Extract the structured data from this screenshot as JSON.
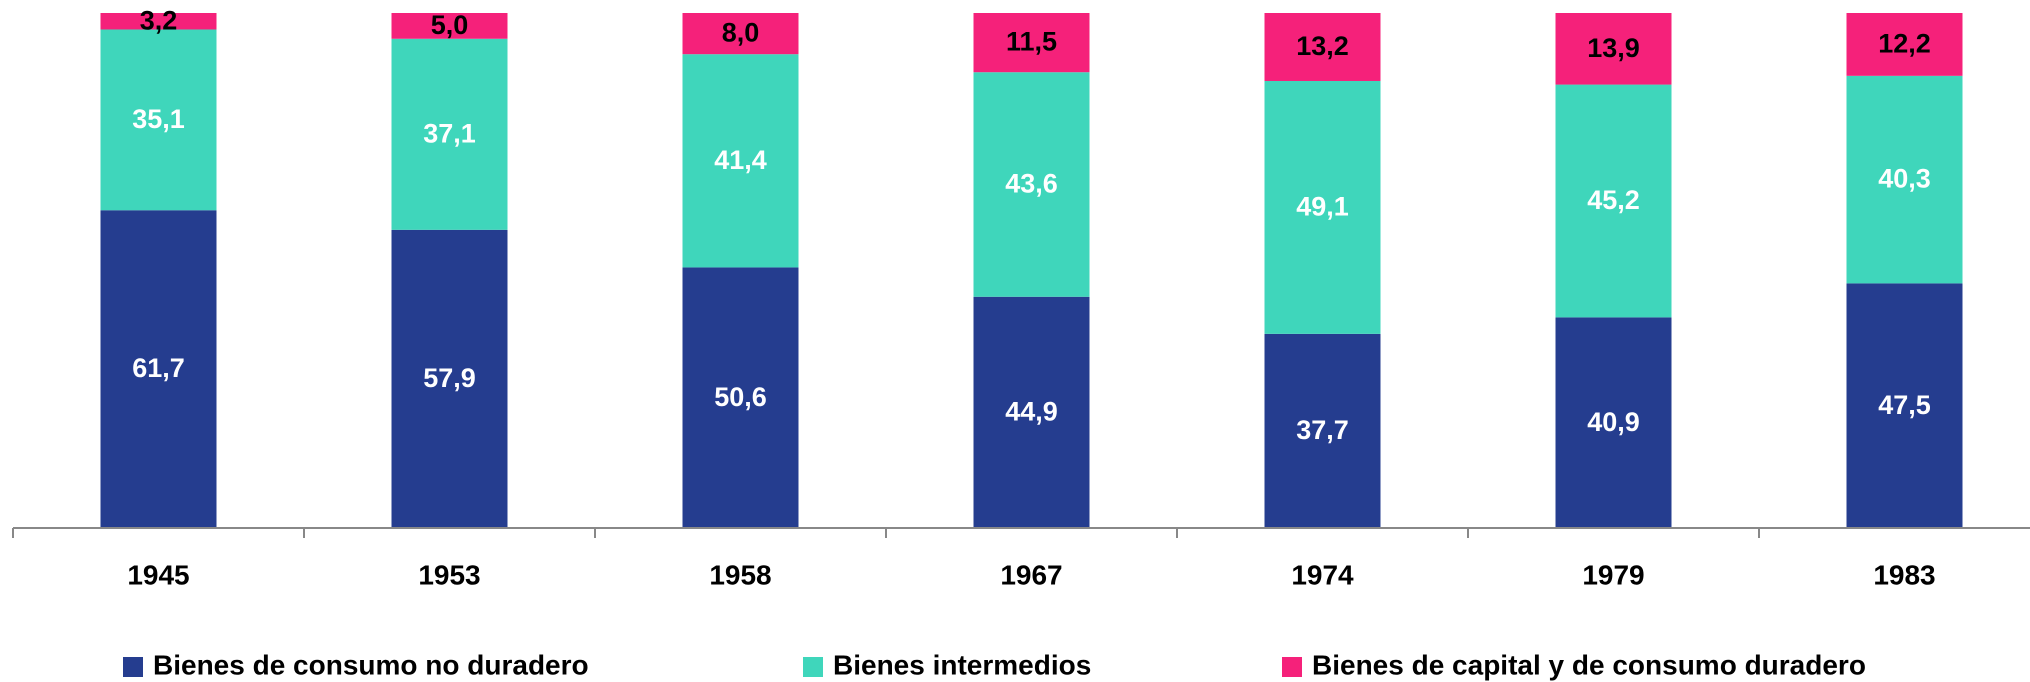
{
  "chart_data": {
    "type": "stacked_bar",
    "categories": [
      "1945",
      "1953",
      "1958",
      "1967",
      "1974",
      "1979",
      "1983"
    ],
    "series": [
      {
        "name": "Bienes de consumo no duradero",
        "color": "#253d8f",
        "label_color": "#ffffff",
        "values": [
          61.7,
          57.9,
          50.6,
          44.9,
          37.7,
          40.9,
          47.5
        ],
        "value_labels": [
          "61,7",
          "57,9",
          "50,6",
          "44,9",
          "37,7",
          "40,9",
          "47,5"
        ]
      },
      {
        "name": "Bienes intermedios",
        "color": "#3fd6bb",
        "label_color": "#ffffff",
        "values": [
          35.1,
          37.1,
          41.4,
          43.6,
          49.1,
          45.2,
          40.3
        ],
        "value_labels": [
          "35,1",
          "37,1",
          "41,4",
          "43,6",
          "49,1",
          "45,2",
          "40,3"
        ]
      },
      {
        "name": "Bienes de capital y de consumo duradero",
        "color": "#f5217a",
        "label_color": "#000000",
        "values": [
          3.2,
          5.0,
          8.0,
          11.5,
          13.2,
          13.9,
          12.2
        ],
        "value_labels": [
          "3,2",
          "5,0",
          "8,0",
          "11,5",
          "13,2",
          "13,9",
          "12,2"
        ]
      }
    ],
    "ylim": [
      0,
      100
    ]
  }
}
